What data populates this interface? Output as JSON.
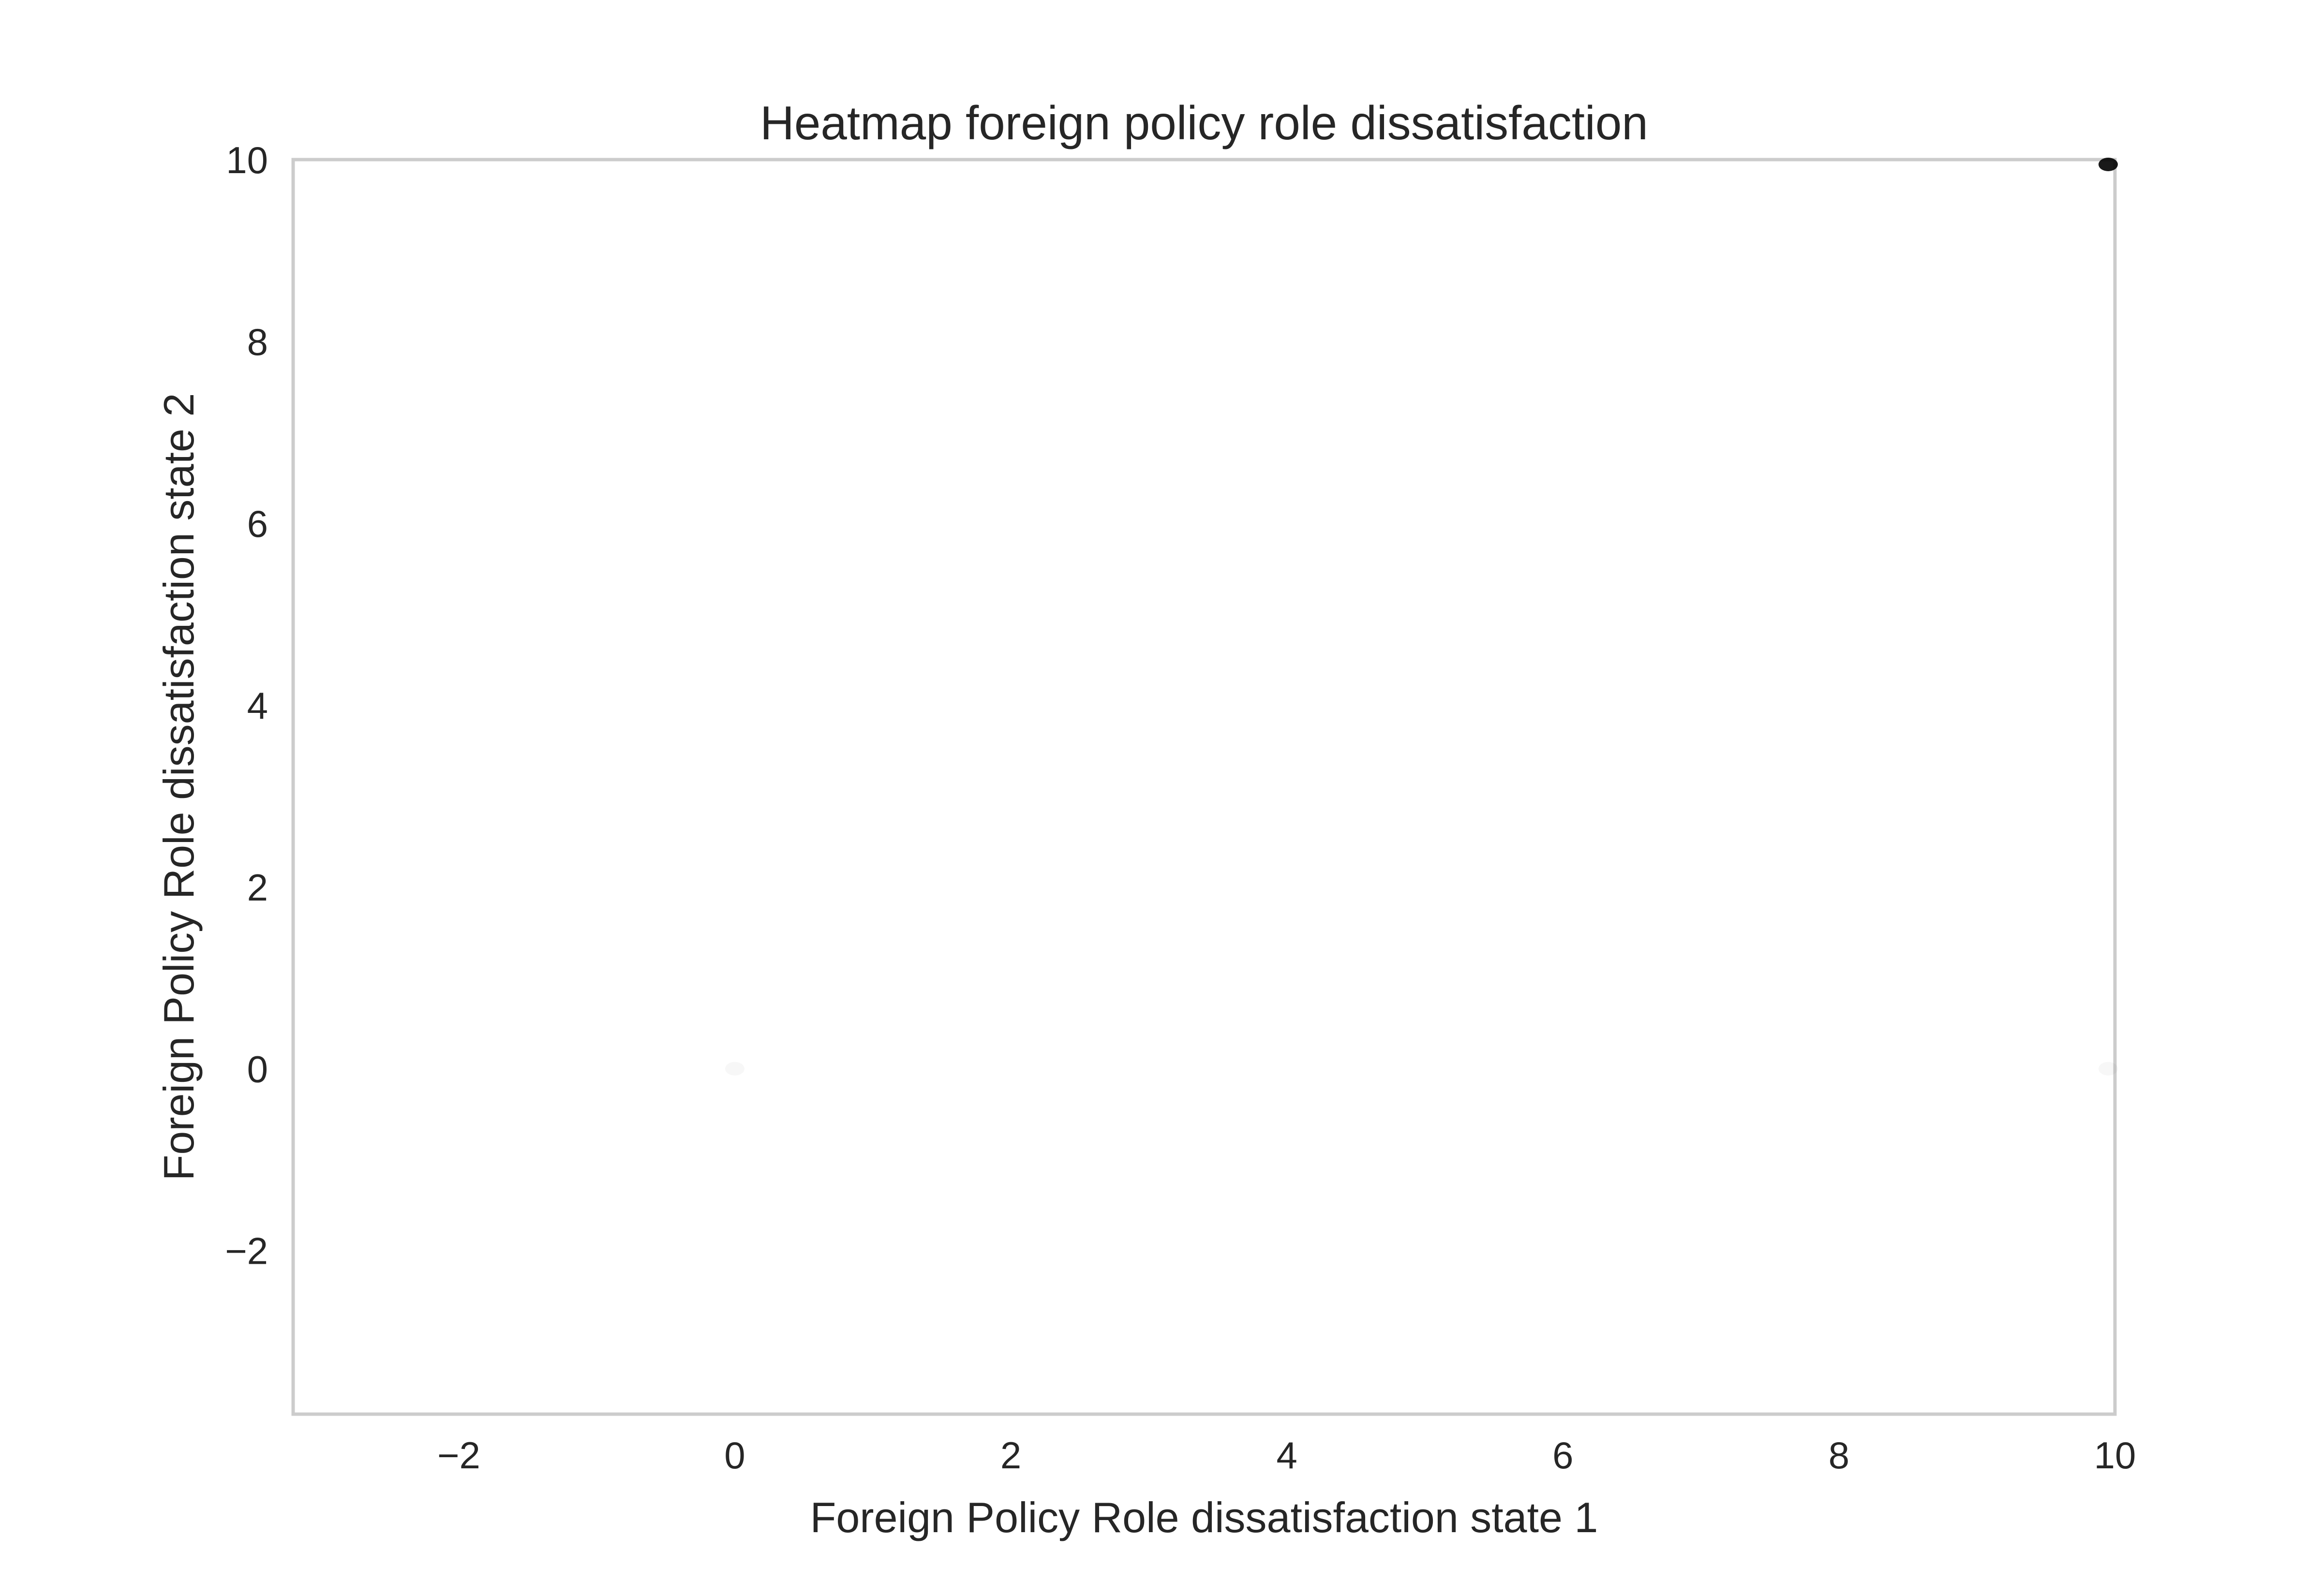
{
  "chart_data": {
    "type": "heatmap",
    "title": "Heatmap foreign policy role dissatisfaction",
    "xlabel": "Foreign Policy Role dissatisfaction state 1",
    "ylabel": "Foreign Policy Role dissatisfaction state 2",
    "xlim": [
      -3.2,
      10
    ],
    "ylim": [
      -3.8,
      10
    ],
    "x_ticks": [
      -2,
      0,
      2,
      4,
      6,
      8,
      10
    ],
    "y_ticks": [
      -2,
      0,
      2,
      4,
      6,
      8,
      10
    ],
    "x_tick_labels": [
      "−2",
      "0",
      "2",
      "4",
      "6",
      "8",
      "10"
    ],
    "y_tick_labels": [
      "−2",
      "0",
      "2",
      "4",
      "6",
      "8",
      "10"
    ],
    "grid": false,
    "legend": "none",
    "cells": [
      {
        "x": 0,
        "y": 0,
        "intensity": 0.03
      },
      {
        "x": 10,
        "y": 0,
        "intensity": 0.03
      },
      {
        "x": 10,
        "y": 10,
        "intensity": 0.9
      }
    ],
    "colors": {
      "frame": "#cccccc",
      "text": "#262626",
      "cell": "#000000"
    }
  }
}
